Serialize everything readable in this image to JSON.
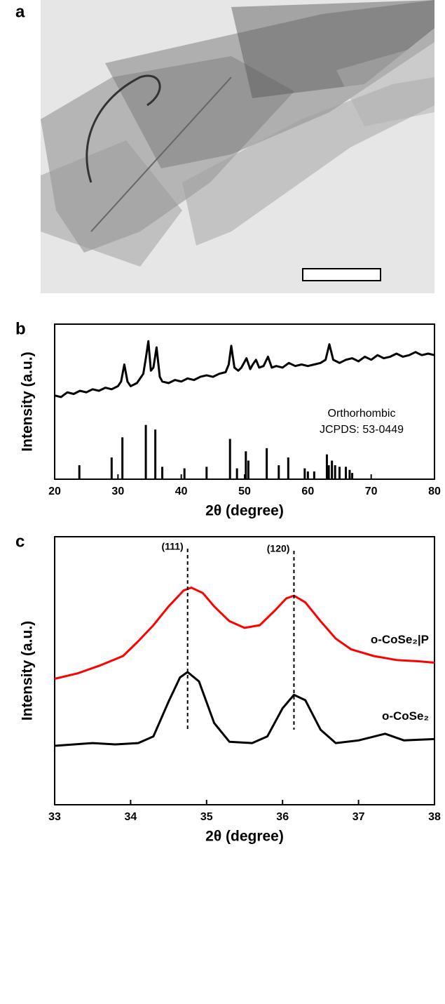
{
  "image_panel": {
    "label": "a"
  },
  "chart_data": [
    {
      "type": "line",
      "label": "b",
      "xlabel": "2θ (degree)",
      "ylabel": "Intensity (a.u.)",
      "xlim": [
        20,
        80
      ],
      "xticks": [
        20,
        30,
        40,
        50,
        60,
        70,
        80
      ],
      "ylim": [
        0,
        100
      ],
      "annotations": [
        "Orthorhombic",
        "JCPDS: 53-0449"
      ],
      "series": [
        {
          "color": "#000000",
          "x": [
            20,
            21,
            22,
            23,
            24,
            25,
            26,
            27,
            28,
            29,
            30,
            30.5,
            31,
            31.5,
            32,
            33,
            34,
            34.4,
            34.8,
            35.2,
            35.6,
            36.1,
            36.6,
            37,
            38,
            39,
            40,
            41,
            42,
            43,
            44,
            45,
            46,
            47,
            47.5,
            47.9,
            48.4,
            49,
            49.5,
            50.3,
            50.9,
            51.3,
            51.8,
            52.3,
            53,
            53.7,
            54.3,
            55,
            56,
            57,
            58,
            59,
            60,
            61,
            62,
            62.8,
            63.4,
            64,
            64.5,
            65,
            66,
            67,
            68,
            69,
            70,
            71,
            72,
            73,
            74,
            75,
            76,
            77,
            78,
            79,
            80
          ],
          "values": [
            54,
            53,
            56,
            55,
            57,
            56,
            58,
            57,
            59,
            58,
            60,
            63,
            74,
            63,
            60,
            62,
            68,
            78,
            89,
            70,
            72,
            85,
            66,
            63,
            62,
            64,
            63,
            65,
            64,
            66,
            67,
            66,
            68,
            69,
            74,
            86,
            72,
            70,
            72,
            78,
            71,
            74,
            77,
            72,
            73,
            79,
            72,
            73,
            72,
            75,
            73,
            74,
            73,
            74,
            75,
            77,
            87,
            77,
            76,
            75,
            77,
            78,
            76,
            79,
            77,
            80,
            78,
            79,
            81,
            79,
            80,
            82,
            80,
            81,
            80
          ]
        }
      ],
      "sticks": {
        "color": "#000000",
        "x": [
          23.9,
          29.0,
          30.7,
          34.4,
          35.9,
          37.0,
          40.5,
          44.0,
          47.7,
          48.8,
          50.2,
          50.6,
          53.5,
          55.4,
          56.9,
          59.5,
          60.0,
          61.0,
          63.0,
          63.3,
          63.8,
          64.3,
          65.0,
          66.0,
          66.6,
          67.0
        ],
        "values": [
          9,
          14,
          27,
          35,
          32,
          8,
          7,
          8,
          26,
          7,
          18,
          12,
          20,
          9,
          14,
          7,
          5,
          5,
          16,
          9,
          12,
          9,
          8,
          8,
          6,
          4
        ]
      }
    },
    {
      "type": "line",
      "label": "c",
      "xlabel": "2θ (degree)",
      "ylabel": "Intensity (a.u.)",
      "xlim": [
        33,
        38
      ],
      "xticks": [
        33,
        34,
        35,
        36,
        37,
        38
      ],
      "ylim": [
        0,
        100
      ],
      "annotations": [
        {
          "x": 34.75,
          "label": "(111)"
        },
        {
          "x": 36.15,
          "label": "(120)"
        }
      ],
      "series": [
        {
          "name": "o-CoSe₂|P",
          "color": "#ff0000",
          "x": [
            33.0,
            33.3,
            33.6,
            33.9,
            34.1,
            34.3,
            34.5,
            34.7,
            34.8,
            34.95,
            35.1,
            35.3,
            35.5,
            35.7,
            35.9,
            36.05,
            36.15,
            36.3,
            36.5,
            36.7,
            36.9,
            37.2,
            37.5,
            37.8,
            38.0
          ],
          "values": [
            47,
            49,
            52,
            55.5,
            61,
            67,
            74,
            80,
            81,
            79,
            74,
            68.5,
            66,
            67,
            72.5,
            77,
            78,
            75.5,
            68.5,
            62,
            58,
            55.5,
            54,
            53.5,
            53
          ]
        },
        {
          "name": "o-CoSe₂",
          "color": "#000000",
          "x": [
            33.0,
            33.5,
            33.8,
            34.1,
            34.3,
            34.5,
            34.65,
            34.75,
            34.9,
            35.1,
            35.3,
            35.6,
            35.8,
            36.0,
            36.15,
            36.3,
            36.5,
            36.7,
            37.0,
            37.35,
            37.6,
            38.0
          ],
          "values": [
            22,
            23,
            22.5,
            23,
            25.5,
            38.5,
            47.5,
            49.5,
            46,
            30.5,
            23.5,
            23,
            25.5,
            36,
            41,
            39,
            28,
            23,
            24,
            26.5,
            24,
            24.5
          ]
        }
      ]
    }
  ]
}
